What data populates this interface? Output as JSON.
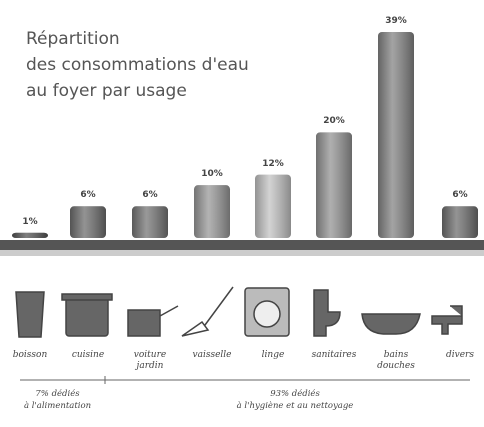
{
  "chart_data": {
    "type": "bar",
    "title": [
      "Répartition",
      "des consommations d'eau",
      "au foyer par usage"
    ],
    "categories": [
      "boisson",
      "cuisine",
      "voiture\njardin",
      "vaisselle",
      "linge",
      "sanitaires",
      "bains\ndouches",
      "divers"
    ],
    "values": [
      1,
      6,
      6,
      10,
      12,
      20,
      39,
      6
    ],
    "value_labels": [
      "1%",
      "6%",
      "6%",
      "10%",
      "12%",
      "20%",
      "39%",
      "6%"
    ],
    "colors": [
      "#555555",
      "#6f6f6f",
      "#777777",
      "#9a9a9a",
      "#c4c4c4",
      "#959595",
      "#858585",
      "#707070"
    ],
    "annotations": [
      "7% dédiés\nà l'alimentation",
      "93% dédiés\nà l'hygiène et au nettoyage"
    ]
  }
}
